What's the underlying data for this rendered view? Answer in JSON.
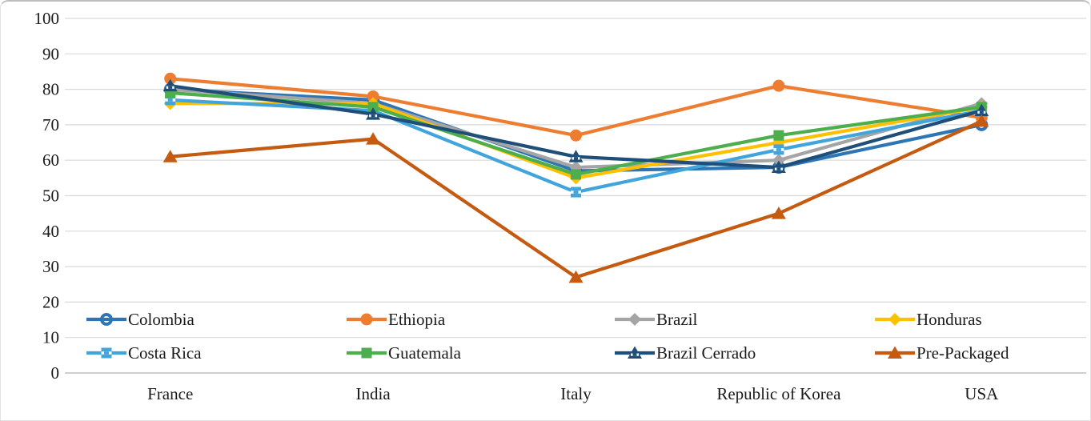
{
  "chart_data": {
    "type": "line",
    "title": "",
    "xlabel": "",
    "ylabel": "",
    "categories": [
      "France",
      "India",
      "Italy",
      "Republic of Korea",
      "USA"
    ],
    "series": [
      {
        "name": "Colombia",
        "color": "#2E75B6",
        "marker": "donut-circle",
        "values": [
          80,
          77,
          57,
          58,
          70
        ]
      },
      {
        "name": "Ethiopia",
        "color": "#ED7D31",
        "marker": "circle",
        "values": [
          83,
          78,
          67,
          81,
          72
        ]
      },
      {
        "name": "Brazil",
        "color": "#A5A5A5",
        "marker": "diamond",
        "values": [
          80,
          76,
          58,
          60,
          76
        ]
      },
      {
        "name": "Honduras",
        "color": "#FFC000",
        "marker": "diamond",
        "values": [
          76,
          76,
          55,
          65,
          75
        ]
      },
      {
        "name": "Costa Rica",
        "color": "#41A5DC",
        "marker": "square-stripe",
        "values": [
          77,
          74,
          51,
          63,
          74
        ]
      },
      {
        "name": "Guatemala",
        "color": "#4CAE4C",
        "marker": "square",
        "values": [
          79,
          75,
          56,
          67,
          75
        ]
      },
      {
        "name": "Brazil Cerrado",
        "color": "#1F4E79",
        "marker": "triangle-stripe",
        "values": [
          81,
          73,
          61,
          58,
          74
        ]
      },
      {
        "name": "Pre-Packaged",
        "color": "#C55A11",
        "marker": "triangle",
        "values": [
          61,
          66,
          27,
          45,
          71
        ]
      }
    ],
    "ylim": [
      0,
      100
    ],
    "y_tick_step": 10,
    "y_tick_labels": [
      "0",
      "10",
      "20",
      "30",
      "40",
      "50",
      "60",
      "70",
      "80",
      "90",
      "100"
    ],
    "grid": "horizontal",
    "grid_color": "#D9D9D9",
    "axis_line_color": "#BFBFBF",
    "text_color": "#1A1A1A",
    "legend_position": "inside-bottom",
    "legend_rows": [
      [
        "Colombia",
        "Ethiopia",
        "Brazil",
        "Honduras"
      ],
      [
        "Costa Rica",
        "Guatemala",
        "Brazil Cerrado",
        "Pre-Packaged"
      ]
    ]
  }
}
